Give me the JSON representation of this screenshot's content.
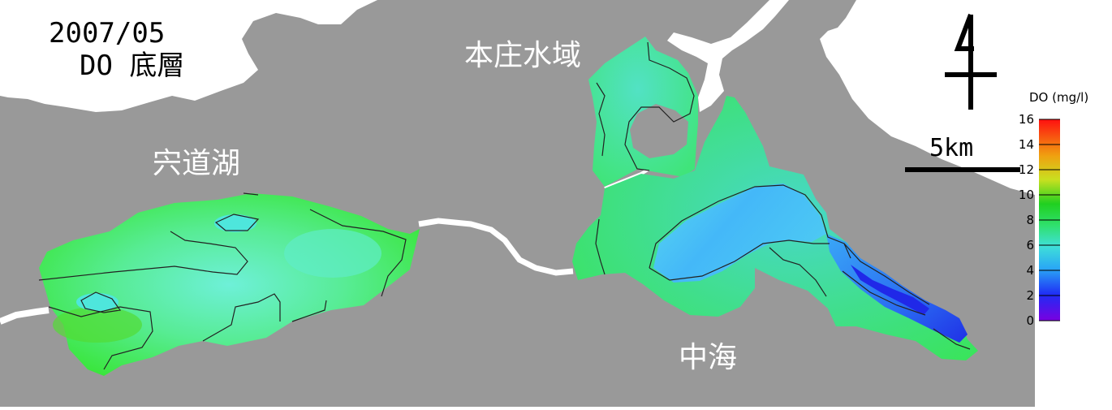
{
  "title": {
    "date": "2007/05",
    "parameter": "DO 底層"
  },
  "map_labels": {
    "shinji": "宍道湖",
    "honjo": "本庄水域",
    "nakaumi": "中海"
  },
  "scale_bar": {
    "label": "5km"
  },
  "colorbar": {
    "title": "DO (mg/l)",
    "ticks": [
      "16",
      "14",
      "12",
      "10",
      "8",
      "6",
      "4",
      "2",
      "0"
    ],
    "min": 0,
    "max": 16
  },
  "colors": {
    "land": "#999999",
    "sea_white": "#ffffff",
    "low_do": "#2b3cf0",
    "mid_do": "#3fe0c8",
    "high_do": "#34e234"
  }
}
